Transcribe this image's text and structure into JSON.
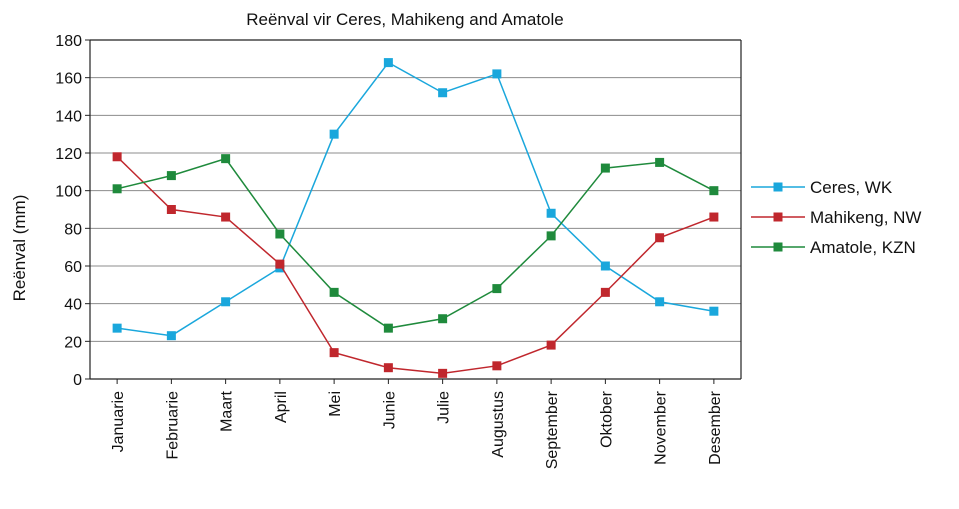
{
  "chart_data": {
    "type": "line",
    "title": "Reënval vir Ceres, Mahikeng and Amatole",
    "xlabel": "",
    "ylabel": "Reënval (mm)",
    "ylim": [
      0,
      180
    ],
    "yticks": [
      0,
      20,
      40,
      60,
      80,
      100,
      120,
      140,
      160,
      180
    ],
    "grid": "horizontal",
    "legend_position": "right",
    "categories": [
      "Januarie",
      "Februarie",
      "Maart",
      "April",
      "Mei",
      "Junie",
      "Julie",
      "Augustus",
      "September",
      "Oktober",
      "November",
      "Desember"
    ],
    "series": [
      {
        "name": "Ceres, WK",
        "color": "#1aa7dc",
        "values": [
          27,
          23,
          41,
          59,
          130,
          168,
          152,
          162,
          88,
          60,
          41,
          36
        ]
      },
      {
        "name": "Mahikeng, NW",
        "color": "#c0272d",
        "values": [
          118,
          90,
          86,
          61,
          14,
          6,
          3,
          7,
          18,
          46,
          75,
          86
        ]
      },
      {
        "name": "Amatole, KZN",
        "color": "#1f8a3c",
        "values": [
          101,
          108,
          117,
          77,
          46,
          27,
          32,
          48,
          76,
          112,
          115,
          100
        ]
      }
    ]
  }
}
